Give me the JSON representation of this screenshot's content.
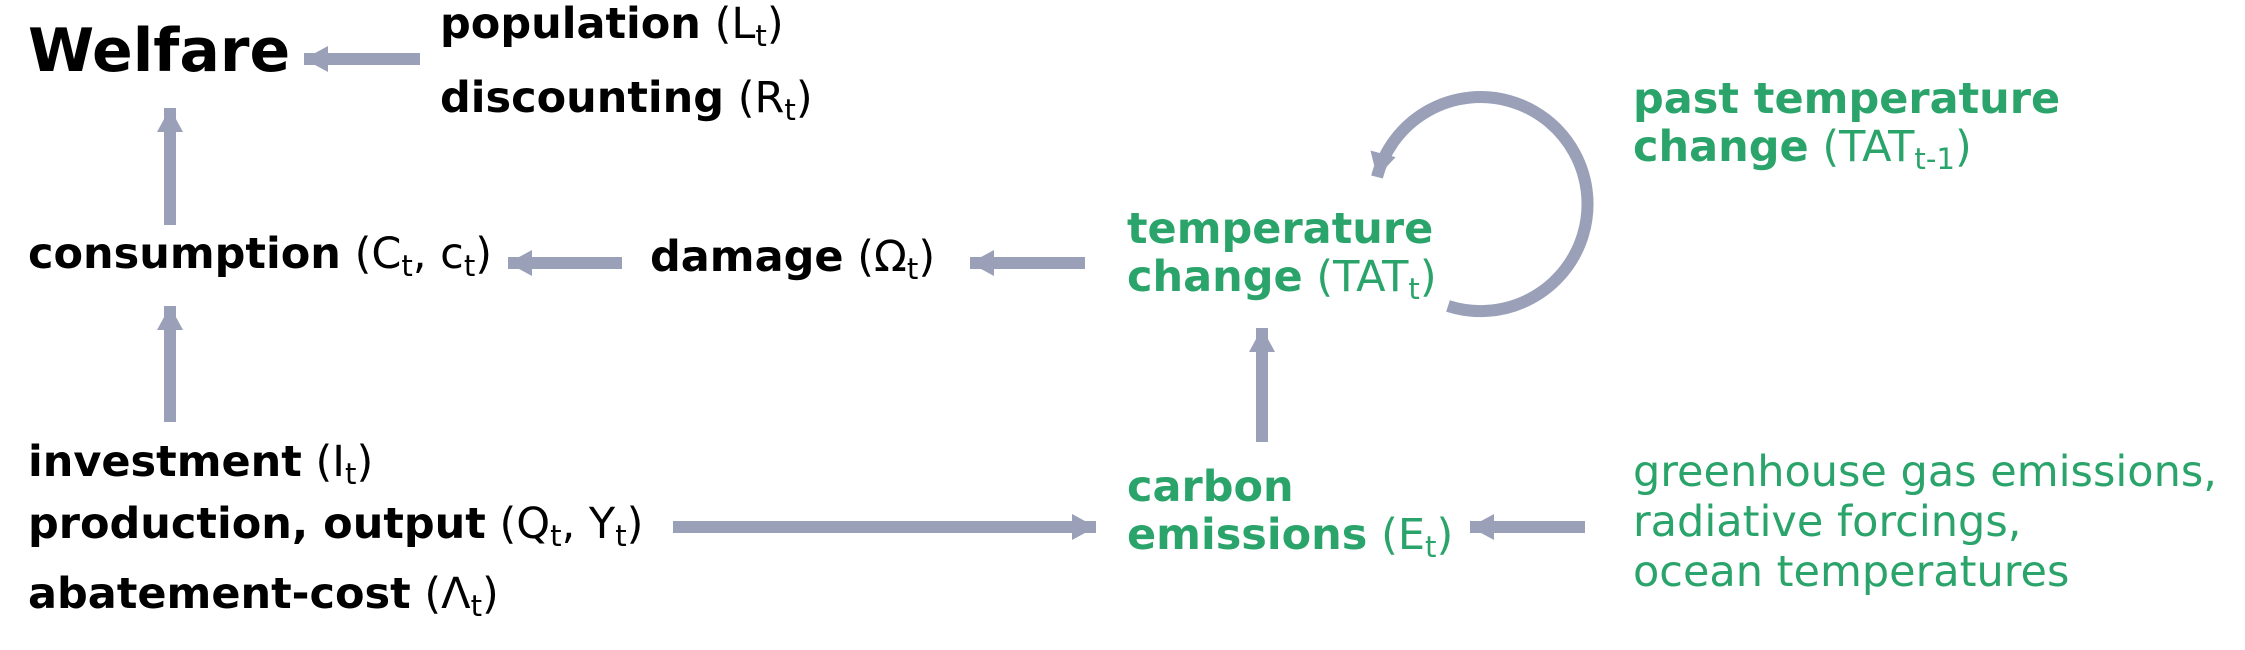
{
  "colors": {
    "green": "#2aa46a",
    "arrow": "#9aa0b8",
    "text": "#000000"
  },
  "welfare": {
    "label": "Welfare"
  },
  "population": {
    "label": "population",
    "sym": "L",
    "sub": "t"
  },
  "discounting": {
    "label": "discounting",
    "sym": "R",
    "sub": "t"
  },
  "consumption": {
    "label": "consumption",
    "sym_open": "(C",
    "sub1": "t",
    "mid": ", c",
    "sub2": "t",
    "close": ")"
  },
  "damage": {
    "label": "damage",
    "sym": "Ω",
    "sub": "t"
  },
  "temperature_change": {
    "line1": "temperature",
    "line2": "change",
    "sym": "TAT",
    "sub": "t"
  },
  "past_temperature": {
    "line1": "past temperature",
    "line2": "change",
    "sym": "TAT",
    "sub": "t-1"
  },
  "investment": {
    "label": "investment",
    "sym": "I",
    "sub": "t"
  },
  "production": {
    "label": "production, output",
    "sym_open": "(Q",
    "sub1": "t",
    "mid": ", Y",
    "sub2": "t",
    "close": ")"
  },
  "abatement": {
    "label": "abatement-cost",
    "sym": "Λ",
    "sub": "t"
  },
  "carbon": {
    "line1": "carbon",
    "line2": "emissions",
    "sym": "E",
    "sub": "t"
  },
  "external": {
    "lines": [
      "greenhouse gas emissions,",
      "radiative forcings,",
      "ocean temperatures"
    ]
  }
}
